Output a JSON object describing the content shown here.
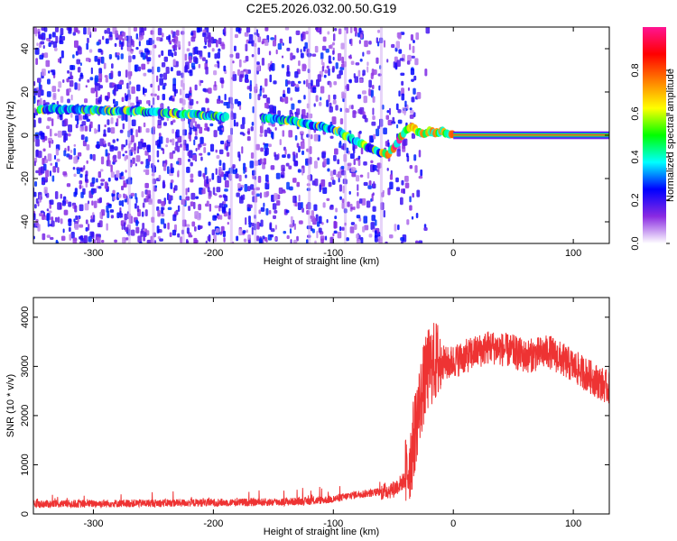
{
  "title": "C2E5.2026.032.00.50.G19",
  "chart_data": [
    {
      "type": "heatmap",
      "xlabel": "Height of straight line (km)",
      "ylabel": "Frequency (Hz)",
      "xlim": [
        -350,
        130
      ],
      "ylim": [
        -50,
        50
      ],
      "xticks": [
        -300,
        -200,
        -100,
        0,
        100
      ],
      "yticks": [
        -40,
        -20,
        0,
        20,
        40
      ],
      "colorbar": {
        "label": "Normalized spectral amplitude",
        "range": [
          0.0,
          1.0
        ],
        "ticks": [
          0.0,
          0.2,
          0.4,
          0.6,
          0.8
        ],
        "colors": [
          "#ffffff",
          "#8a2be2",
          "#0000ff",
          "#00ffff",
          "#00ff00",
          "#ffff00",
          "#ff8000",
          "#ff0000",
          "#ff1493"
        ]
      },
      "main_tone": {
        "x": [
          -345,
          -320,
          -290,
          -260,
          -230,
          -200,
          -190,
          -160,
          -140,
          -120,
          -100,
          -90,
          -80,
          -70,
          -60,
          -55,
          -50,
          -45,
          -40,
          -35,
          -30,
          -25,
          -20,
          -15,
          -10,
          -5,
          0,
          130
        ],
        "y": [
          12,
          12,
          11.5,
          11,
          10,
          9,
          8.5,
          8,
          7,
          5,
          3,
          0,
          -3,
          -6,
          -8,
          -9,
          -6,
          -2,
          2,
          4,
          2,
          0,
          2,
          1,
          2,
          0.5,
          0,
          0
        ]
      }
    },
    {
      "type": "line",
      "xlabel": "Height of straight line (km)",
      "ylabel": "SNR (10 * v/v)",
      "xlim": [
        -350,
        130
      ],
      "ylim": [
        0,
        4400
      ],
      "xticks": [
        -300,
        -200,
        -100,
        0,
        100
      ],
      "yticks": [
        0,
        1000,
        2000,
        3000,
        4000
      ],
      "color": "#ee3333",
      "series": [
        {
          "x": [
            -350,
            -300,
            -250,
            -200,
            -150,
            -120,
            -100,
            -90,
            -80,
            -70,
            -60,
            -50,
            -40,
            -35,
            -30,
            -25,
            -20,
            -15,
            -10,
            -5,
            0,
            10,
            20,
            30,
            40,
            50,
            60,
            70,
            80,
            90,
            100,
            110,
            120,
            130
          ],
          "values": [
            200,
            210,
            220,
            230,
            240,
            260,
            300,
            350,
            400,
            420,
            450,
            500,
            700,
            1200,
            2000,
            2600,
            3000,
            3100,
            3100,
            3050,
            3100,
            3200,
            3300,
            3400,
            3350,
            3300,
            3200,
            3250,
            3300,
            3150,
            3000,
            2850,
            2700,
            2550
          ]
        }
      ]
    }
  ]
}
